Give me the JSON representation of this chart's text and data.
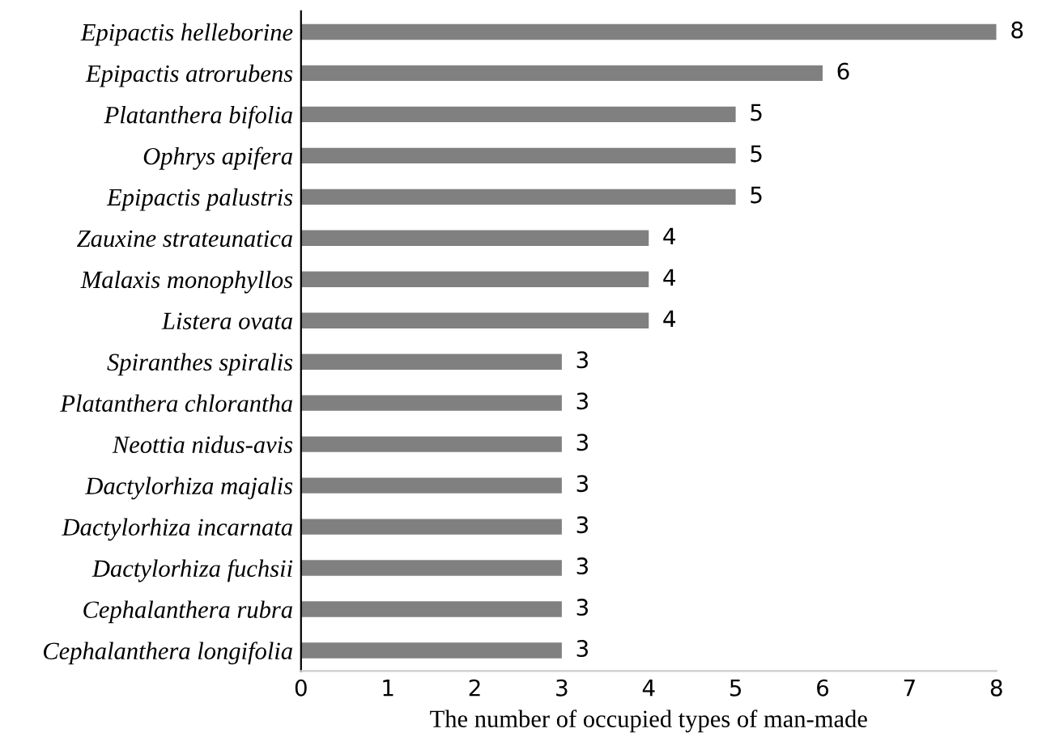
{
  "chart_data": {
    "type": "bar",
    "orientation": "horizontal",
    "xlabel": "The number of occupied types of man-made",
    "categories": [
      "Epipactis helleborine",
      "Epipactis atrorubens",
      "Platanthera bifolia",
      "Ophrys apifera",
      "Epipactis palustris",
      "Zauxine strateunatica",
      "Malaxis monophyllos",
      "Listera ovata",
      "Spiranthes spiralis",
      "Platanthera chlorantha",
      "Neottia nidus-avis",
      "Dactylorhiza majalis",
      "Dactylorhiza incarnata",
      "Dactylorhiza fuchsii",
      "Cephalanthera rubra",
      "Cephalanthera longifolia"
    ],
    "values": [
      8,
      6,
      5,
      5,
      5,
      4,
      4,
      4,
      3,
      3,
      3,
      3,
      3,
      3,
      3,
      3
    ],
    "color": "#808080",
    "xlim": [
      0,
      8
    ],
    "xticks": [
      0,
      1,
      2,
      3,
      4,
      5,
      6,
      7,
      8
    ],
    "data_labels": true,
    "grid": false,
    "legend": false
  }
}
